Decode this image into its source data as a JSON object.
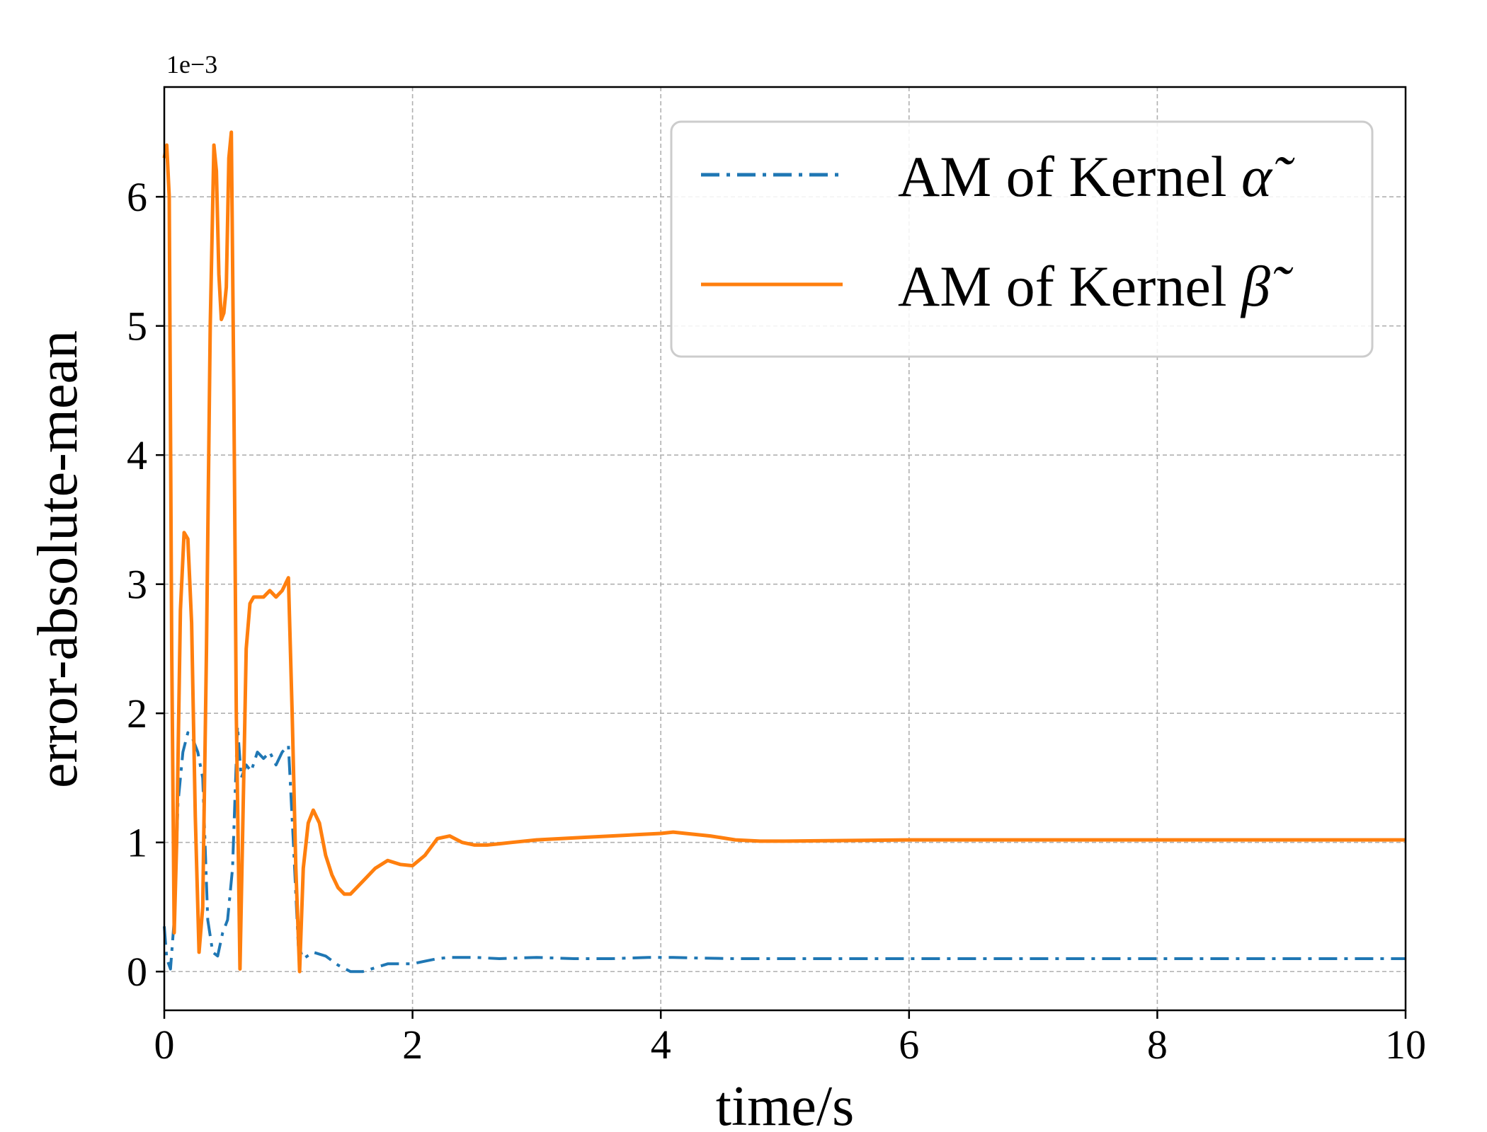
{
  "chart_data": {
    "type": "line",
    "xlabel": "time/s",
    "ylabel": "error-absolute-mean",
    "y_offset_label": "1e−3",
    "xlim": [
      0,
      10
    ],
    "ylim": [
      -0.3,
      6.85
    ],
    "x_ticks": [
      0,
      2,
      4,
      6,
      8,
      10
    ],
    "y_ticks": [
      0,
      1,
      2,
      3,
      4,
      5,
      6
    ],
    "grid": true,
    "legend_position": "top-right",
    "colors": {
      "alpha": "#1f77b4",
      "beta": "#ff7f0e"
    },
    "series": [
      {
        "name": "AM of Kernel ",
        "symbol": "α̃",
        "style": "dashdot",
        "color": "#1f77b4",
        "x": [
          0,
          0.02,
          0.05,
          0.08,
          0.11,
          0.15,
          0.19,
          0.23,
          0.27,
          0.31,
          0.35,
          0.39,
          0.43,
          0.47,
          0.51,
          0.55,
          0.59,
          0.62,
          0.66,
          0.7,
          0.75,
          0.8,
          0.85,
          0.9,
          0.95,
          1.0,
          1.04,
          1.08,
          1.12,
          1.2,
          1.3,
          1.4,
          1.5,
          1.6,
          1.7,
          1.8,
          1.9,
          2.0,
          2.1,
          2.2,
          2.3,
          2.5,
          2.7,
          3.0,
          3.3,
          3.6,
          3.9,
          4.1,
          4.3,
          4.6,
          5.0,
          6.0,
          7.0,
          8.0,
          9.0,
          10.0
        ],
        "y": [
          0.35,
          0.1,
          0.02,
          0.4,
          1.3,
          1.7,
          1.85,
          1.8,
          1.7,
          1.5,
          0.4,
          0.15,
          0.12,
          0.3,
          0.4,
          0.8,
          1.9,
          1.5,
          1.6,
          1.55,
          1.7,
          1.65,
          1.7,
          1.6,
          1.7,
          1.75,
          1.0,
          0.2,
          0.1,
          0.15,
          0.12,
          0.05,
          0.0,
          0.0,
          0.03,
          0.06,
          0.06,
          0.06,
          0.08,
          0.1,
          0.11,
          0.11,
          0.1,
          0.11,
          0.1,
          0.1,
          0.11,
          0.11,
          0.105,
          0.1,
          0.1,
          0.1,
          0.1,
          0.1,
          0.1,
          0.1
        ]
      },
      {
        "name": "AM of Kernel ",
        "symbol": "β̃",
        "style": "solid",
        "color": "#ff7f0e",
        "x": [
          0,
          0.02,
          0.04,
          0.06,
          0.08,
          0.1,
          0.13,
          0.16,
          0.19,
          0.22,
          0.25,
          0.28,
          0.31,
          0.34,
          0.37,
          0.4,
          0.42,
          0.44,
          0.46,
          0.48,
          0.5,
          0.52,
          0.54,
          0.56,
          0.58,
          0.61,
          0.64,
          0.66,
          0.69,
          0.72,
          0.76,
          0.8,
          0.85,
          0.9,
          0.95,
          1.0,
          1.03,
          1.06,
          1.09,
          1.12,
          1.16,
          1.2,
          1.25,
          1.3,
          1.35,
          1.4,
          1.45,
          1.5,
          1.55,
          1.6,
          1.7,
          1.8,
          1.9,
          2.0,
          2.1,
          2.2,
          2.3,
          2.4,
          2.5,
          2.6,
          2.7,
          2.8,
          3.0,
          3.2,
          3.4,
          3.6,
          3.8,
          4.0,
          4.1,
          4.2,
          4.4,
          4.6,
          4.8,
          5.0,
          6.0,
          7.0,
          8.0,
          9.0,
          10.0
        ],
        "y": [
          6.3,
          6.4,
          6.0,
          2.5,
          0.3,
          1.0,
          2.8,
          3.4,
          3.35,
          2.7,
          1.2,
          0.15,
          0.5,
          2.5,
          5.0,
          6.4,
          6.2,
          5.4,
          5.05,
          5.1,
          5.3,
          6.3,
          6.5,
          4.5,
          2.0,
          0.02,
          1.5,
          2.5,
          2.85,
          2.9,
          2.9,
          2.9,
          2.95,
          2.9,
          2.95,
          3.05,
          2.0,
          0.8,
          0.0,
          0.8,
          1.15,
          1.25,
          1.15,
          0.9,
          0.75,
          0.65,
          0.6,
          0.6,
          0.65,
          0.7,
          0.8,
          0.86,
          0.83,
          0.82,
          0.9,
          1.03,
          1.05,
          1.0,
          0.98,
          0.98,
          0.99,
          1.0,
          1.02,
          1.03,
          1.04,
          1.05,
          1.06,
          1.07,
          1.08,
          1.07,
          1.05,
          1.02,
          1.01,
          1.01,
          1.02,
          1.02,
          1.02,
          1.02,
          1.02
        ]
      }
    ]
  }
}
